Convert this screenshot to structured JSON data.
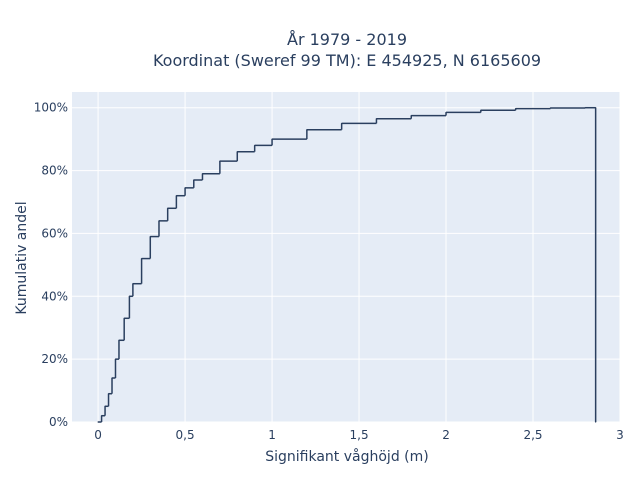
{
  "chart_data": {
    "type": "line",
    "title_lines": [
      "År 1979 - 2019",
      "Koordinat (Sweref 99 TM): E 454925, N 6165609"
    ],
    "xlabel": "Signifikant våghöjd (m)",
    "ylabel": "Kumulativ andel",
    "xlim": [
      -0.15,
      3.0
    ],
    "ylim": [
      0,
      1.05
    ],
    "x_ticks": [
      0,
      0.5,
      1,
      1.5,
      2,
      2.5,
      3
    ],
    "x_tick_labels": [
      "0",
      "0,5",
      "1",
      "1,5",
      "2",
      "2,5",
      "3"
    ],
    "y_ticks": [
      0,
      0.2,
      0.4,
      0.6,
      0.8,
      1.0
    ],
    "y_tick_labels": [
      "0%",
      "20%",
      "40%",
      "60%",
      "80%",
      "100%"
    ],
    "grid": true,
    "step": true,
    "series": [
      {
        "color": "#2a3f5f",
        "x": [
          0.0,
          0.02,
          0.04,
          0.06,
          0.08,
          0.1,
          0.12,
          0.15,
          0.18,
          0.2,
          0.25,
          0.3,
          0.35,
          0.4,
          0.45,
          0.5,
          0.55,
          0.6,
          0.7,
          0.8,
          0.9,
          1.0,
          1.2,
          1.4,
          1.6,
          1.8,
          2.0,
          2.2,
          2.4,
          2.6,
          2.8,
          2.86,
          2.86
        ],
        "y": [
          0.0,
          0.02,
          0.05,
          0.09,
          0.14,
          0.2,
          0.26,
          0.33,
          0.4,
          0.44,
          0.52,
          0.59,
          0.64,
          0.68,
          0.72,
          0.745,
          0.77,
          0.79,
          0.83,
          0.86,
          0.88,
          0.9,
          0.93,
          0.95,
          0.965,
          0.975,
          0.985,
          0.992,
          0.997,
          0.999,
          1.0,
          1.0,
          0.0
        ]
      }
    ]
  }
}
